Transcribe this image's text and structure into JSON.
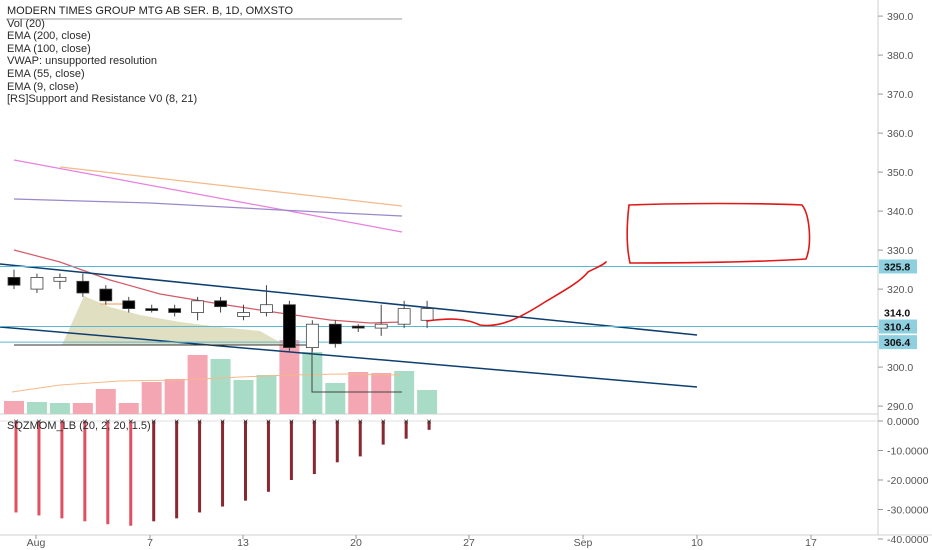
{
  "legend": {
    "title": "MODERN TIMES GROUP MTG AB SER. B, 1D, OMXSTO",
    "lines": [
      "Vol (20)",
      "EMA (200, close)",
      "EMA (100, close)",
      "VWAP: unsupported resolution",
      "EMA (55, close)",
      "EMA (9, close)",
      "[RS]Support and Resistance V0 (8, 21)"
    ]
  },
  "oscillator_label": "SQZMOM_LB (20, 2, 20, 1.5)",
  "colors": {
    "up_candle": "#ffffff",
    "down_candle": "#000000",
    "vol_up": "#a8dcc6",
    "vol_down": "#f4a7b2",
    "hline": "#5ab8d3",
    "trend": "#0d3e6e",
    "drawing": "#e01818",
    "price_label_bg": "#8fd0e0",
    "ema_pink": "#e87fe0",
    "ema_orange": "#f5b98a",
    "ema_purple": "#9a88c8",
    "ema_red": "#d45a68",
    "mom_red": "#e05060",
    "mom_dark": "#8a2832"
  },
  "chart_data": {
    "type": "candlestick",
    "title": "MODERN TIMES GROUP MTG AB SER. B, 1D, OMXSTO",
    "x_tick_labels": [
      "Aug",
      "7",
      "13",
      "20",
      "27",
      "Sep",
      "10",
      "17"
    ],
    "y_ticks": [
      290.0,
      300.0,
      310.0,
      320.0,
      330.0,
      340.0,
      350.0,
      360.0,
      370.0,
      380.0,
      390.0
    ],
    "y_tick_labels": [
      "290.0",
      "300.0",
      "310.0",
      "320.0",
      "330.0",
      "340.0",
      "350.0",
      "360.0",
      "370.0",
      "380.0",
      "390.0"
    ],
    "ylim": [
      289,
      394
    ],
    "candles": [
      {
        "date": "2018-07-30",
        "open": 323,
        "high": 325,
        "low": 320,
        "close": 321
      },
      {
        "date": "2018-07-31",
        "open": 320,
        "high": 324,
        "low": 319,
        "close": 323
      },
      {
        "date": "2018-08-01",
        "open": 322,
        "high": 324,
        "low": 320,
        "close": 323
      },
      {
        "date": "2018-08-02",
        "open": 322,
        "high": 324,
        "low": 318,
        "close": 319
      },
      {
        "date": "2018-08-03",
        "open": 320,
        "high": 321,
        "low": 316,
        "close": 317
      },
      {
        "date": "2018-08-06",
        "open": 317,
        "high": 318,
        "low": 314,
        "close": 315
      },
      {
        "date": "2018-08-07",
        "open": 315,
        "high": 316,
        "low": 314,
        "close": 314.5
      },
      {
        "date": "2018-08-08",
        "open": 315,
        "high": 316,
        "low": 313,
        "close": 314
      },
      {
        "date": "2018-08-09",
        "open": 314,
        "high": 318,
        "low": 312,
        "close": 317
      },
      {
        "date": "2018-08-10",
        "open": 317,
        "high": 318,
        "low": 314,
        "close": 315.5
      },
      {
        "date": "2018-08-13",
        "open": 313,
        "high": 316,
        "low": 312,
        "close": 314
      },
      {
        "date": "2018-08-14",
        "open": 314,
        "high": 321,
        "low": 313,
        "close": 316
      },
      {
        "date": "2018-08-15",
        "open": 316,
        "high": 317,
        "low": 304,
        "close": 305
      },
      {
        "date": "2018-08-16",
        "open": 305,
        "high": 312,
        "low": 304,
        "close": 311
      },
      {
        "date": "2018-08-17",
        "open": 311,
        "high": 312,
        "low": 305,
        "close": 306
      },
      {
        "date": "2018-08-20",
        "open": 310.5,
        "high": 311,
        "low": 309,
        "close": 310
      },
      {
        "date": "2018-08-21",
        "open": 310,
        "high": 316,
        "low": 308,
        "close": 311
      },
      {
        "date": "2018-08-22",
        "open": 311,
        "high": 317,
        "low": 310,
        "close": 315
      },
      {
        "date": "2018-08-23",
        "open": 312,
        "high": 317,
        "low": 310,
        "close": 315
      }
    ],
    "volume_up": [
      false,
      true,
      true,
      false,
      false,
      false,
      false,
      false,
      false,
      true,
      true,
      true,
      false,
      true,
      true,
      false,
      false,
      true,
      true
    ],
    "horizontal_levels": [
      325.8,
      310.4,
      306.4
    ],
    "price_labels": [
      "325.8",
      "314.0",
      "310.4",
      "306.4"
    ],
    "oscillator": {
      "y_ticks": [
        0,
        -10,
        -20,
        -30,
        -40
      ],
      "y_tick_labels": [
        "0.0000",
        "-10.0000",
        "-20.0000",
        "-30.0000",
        "-40.0000"
      ],
      "ylim": [
        -41,
        1
      ],
      "values": [
        -31,
        -32,
        -33,
        -34,
        -35,
        -35.5,
        -34,
        -33,
        -31,
        -29,
        -27,
        -24,
        -20,
        -18,
        -14,
        -12,
        -8,
        -6,
        -3
      ]
    }
  }
}
